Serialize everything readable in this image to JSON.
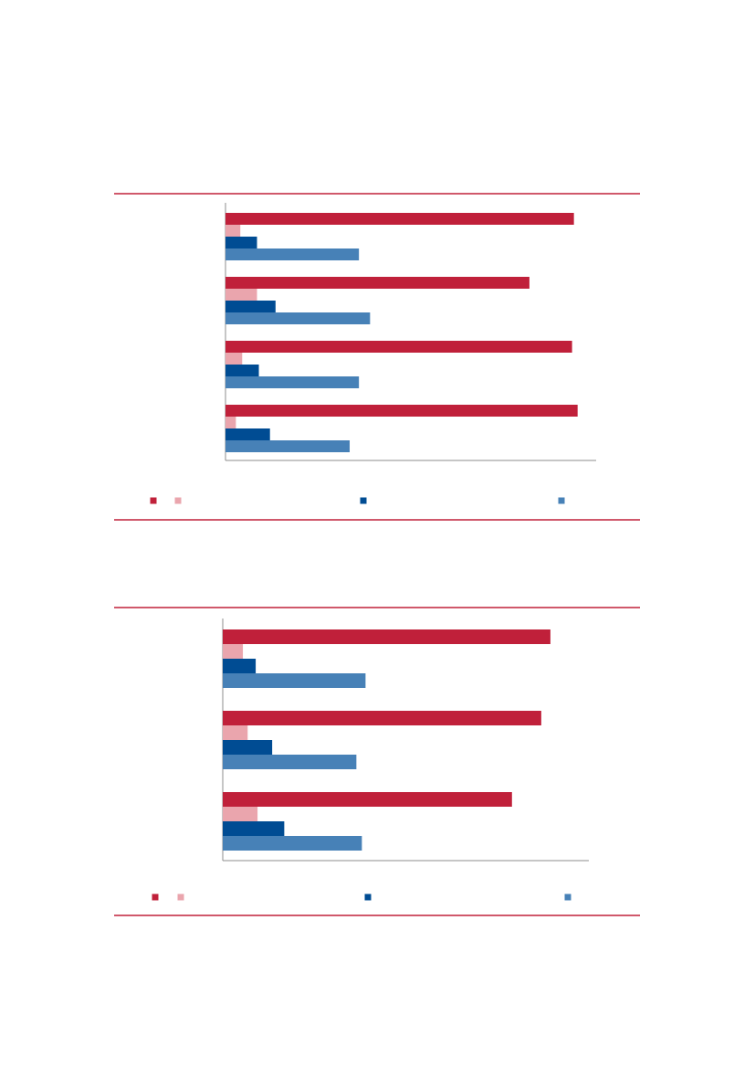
{
  "colors": {
    "rule": "#c0203a",
    "axis": "#8c8c8c",
    "series": [
      "#c0203a",
      "#eaa5ad",
      "#004c93",
      "#4781b7"
    ]
  },
  "chart_data": [
    {
      "type": "bar",
      "orientation": "horizontal",
      "title": "",
      "xlabel": "",
      "ylabel": "",
      "categories": [
        "",
        "",
        "",
        ""
      ],
      "xlim": [
        0,
        100
      ],
      "grid": false,
      "legend": "bottom",
      "series": [
        {
          "values": [
            94,
            82,
            93.5,
            95
          ],
          "color": "#c0203a"
        },
        {
          "values": [
            4,
            8.5,
            4.5,
            2.8
          ],
          "color": "#eaa5ad"
        },
        {
          "values": [
            8.5,
            13.5,
            9,
            12
          ],
          "color": "#004c93"
        },
        {
          "values": [
            36,
            39,
            36,
            33.5
          ],
          "color": "#4781b7"
        }
      ]
    },
    {
      "type": "bar",
      "orientation": "horizontal",
      "title": "",
      "xlabel": "",
      "ylabel": "",
      "categories": [
        "",
        "",
        ""
      ],
      "xlim": [
        0,
        100
      ],
      "grid": false,
      "legend": "bottom",
      "series": [
        {
          "values": [
            89.5,
            87,
            79
          ],
          "color": "#c0203a"
        },
        {
          "values": [
            5.5,
            6.8,
            9.5
          ],
          "color": "#eaa5ad"
        },
        {
          "values": [
            9,
            13.5,
            16.8
          ],
          "color": "#004c93"
        },
        {
          "values": [
            39,
            36.5,
            38
          ],
          "color": "#4781b7"
        }
      ]
    }
  ]
}
